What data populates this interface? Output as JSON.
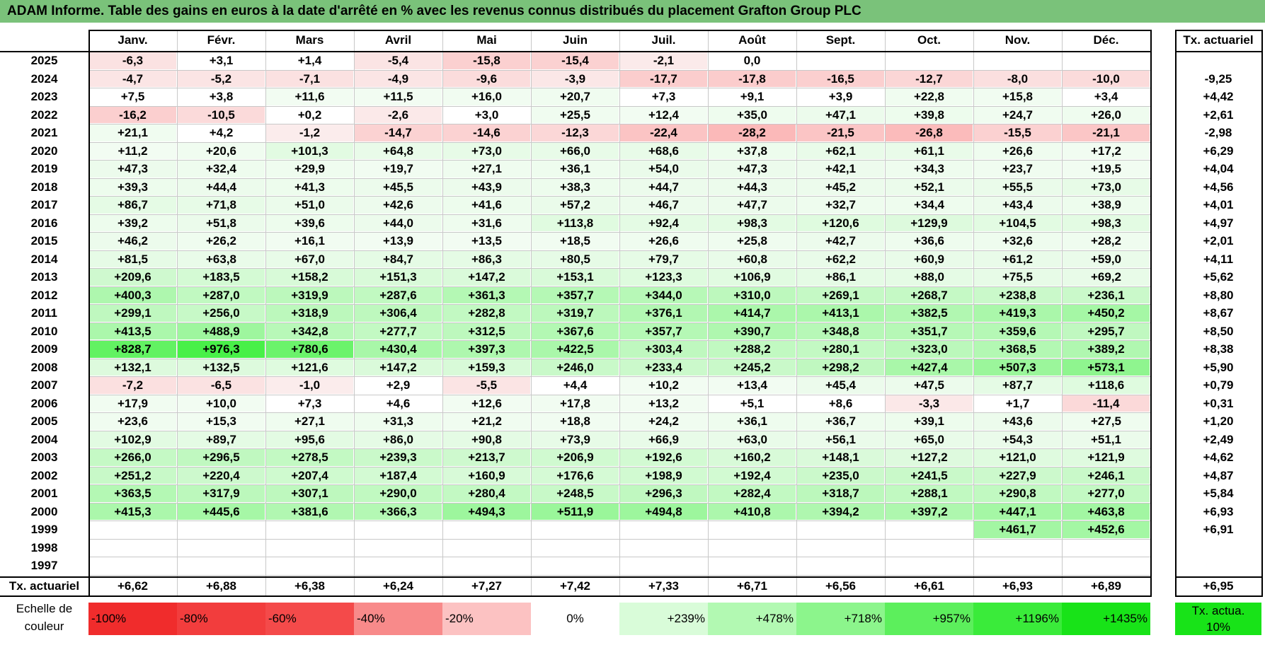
{
  "title": "ADAM Informe. Table des gains en euros à la date d'arrêté en % avec les revenus connus distribués du placement Grafton Group PLC",
  "chart_data": {
    "type": "table",
    "columns": [
      "Janv.",
      "Févr.",
      "Mars",
      "Avril",
      "Mai",
      "Juin",
      "Juil.",
      "Août",
      "Sept.",
      "Oct.",
      "Nov.",
      "Déc."
    ],
    "rate_header": "Tx. actuariel",
    "rows": [
      {
        "year": "2025",
        "values": [
          "-6,3",
          "+3,1",
          "+1,4",
          "-5,4",
          "-15,8",
          "-15,4",
          "-2,1",
          "0,0",
          "",
          "",
          "",
          ""
        ],
        "rate": ""
      },
      {
        "year": "2024",
        "values": [
          "-4,7",
          "-5,2",
          "-7,1",
          "-4,9",
          "-9,6",
          "-3,9",
          "-17,7",
          "-17,8",
          "-16,5",
          "-12,7",
          "-8,0",
          "-10,0"
        ],
        "rate": "-9,25"
      },
      {
        "year": "2023",
        "values": [
          "+7,5",
          "+3,8",
          "+11,6",
          "+11,5",
          "+16,0",
          "+20,7",
          "+7,3",
          "+9,1",
          "+3,9",
          "+22,8",
          "+15,8",
          "+3,4"
        ],
        "rate": "+4,42"
      },
      {
        "year": "2022",
        "values": [
          "-16,2",
          "-10,5",
          "+0,2",
          "-2,6",
          "+3,0",
          "+25,5",
          "+12,4",
          "+35,0",
          "+47,1",
          "+39,8",
          "+24,7",
          "+26,0"
        ],
        "rate": "+2,61"
      },
      {
        "year": "2021",
        "values": [
          "+21,1",
          "+4,2",
          "-1,2",
          "-14,7",
          "-14,6",
          "-12,3",
          "-22,4",
          "-28,2",
          "-21,5",
          "-26,8",
          "-15,5",
          "-21,1"
        ],
        "rate": "-2,98"
      },
      {
        "year": "2020",
        "values": [
          "+11,2",
          "+20,6",
          "+101,3",
          "+64,8",
          "+73,0",
          "+66,0",
          "+68,6",
          "+37,8",
          "+62,1",
          "+61,1",
          "+26,6",
          "+17,2"
        ],
        "rate": "+6,29"
      },
      {
        "year": "2019",
        "values": [
          "+47,3",
          "+32,4",
          "+29,9",
          "+19,7",
          "+27,1",
          "+36,1",
          "+54,0",
          "+47,3",
          "+42,1",
          "+34,3",
          "+23,7",
          "+19,5"
        ],
        "rate": "+4,04"
      },
      {
        "year": "2018",
        "values": [
          "+39,3",
          "+44,4",
          "+41,3",
          "+45,5",
          "+43,9",
          "+38,3",
          "+44,7",
          "+44,3",
          "+45,2",
          "+52,1",
          "+55,5",
          "+73,0"
        ],
        "rate": "+4,56"
      },
      {
        "year": "2017",
        "values": [
          "+86,7",
          "+71,8",
          "+51,0",
          "+42,6",
          "+41,6",
          "+57,2",
          "+46,7",
          "+47,7",
          "+32,7",
          "+34,4",
          "+43,4",
          "+38,9"
        ],
        "rate": "+4,01"
      },
      {
        "year": "2016",
        "values": [
          "+39,2",
          "+51,8",
          "+39,6",
          "+44,0",
          "+31,6",
          "+113,8",
          "+92,4",
          "+98,3",
          "+120,6",
          "+129,9",
          "+104,5",
          "+98,3"
        ],
        "rate": "+4,97"
      },
      {
        "year": "2015",
        "values": [
          "+46,2",
          "+26,2",
          "+16,1",
          "+13,9",
          "+13,5",
          "+18,5",
          "+26,6",
          "+25,8",
          "+42,7",
          "+36,6",
          "+32,6",
          "+28,2"
        ],
        "rate": "+2,01"
      },
      {
        "year": "2014",
        "values": [
          "+81,5",
          "+63,8",
          "+67,0",
          "+84,7",
          "+86,3",
          "+80,5",
          "+79,7",
          "+60,8",
          "+62,2",
          "+60,9",
          "+61,2",
          "+59,0"
        ],
        "rate": "+4,11"
      },
      {
        "year": "2013",
        "values": [
          "+209,6",
          "+183,5",
          "+158,2",
          "+151,3",
          "+147,2",
          "+153,1",
          "+123,3",
          "+106,9",
          "+86,1",
          "+88,0",
          "+75,5",
          "+69,2"
        ],
        "rate": "+5,62"
      },
      {
        "year": "2012",
        "values": [
          "+400,3",
          "+287,0",
          "+319,9",
          "+287,6",
          "+361,3",
          "+357,7",
          "+344,0",
          "+310,0",
          "+269,1",
          "+268,7",
          "+238,8",
          "+236,1"
        ],
        "rate": "+8,80"
      },
      {
        "year": "2011",
        "values": [
          "+299,1",
          "+256,0",
          "+318,9",
          "+306,4",
          "+282,8",
          "+319,7",
          "+376,1",
          "+414,7",
          "+413,1",
          "+382,5",
          "+419,3",
          "+450,2"
        ],
        "rate": "+8,67"
      },
      {
        "year": "2010",
        "values": [
          "+413,5",
          "+488,9",
          "+342,8",
          "+277,7",
          "+312,5",
          "+367,6",
          "+357,7",
          "+390,7",
          "+348,8",
          "+351,7",
          "+359,6",
          "+295,7"
        ],
        "rate": "+8,50"
      },
      {
        "year": "2009",
        "values": [
          "+828,7",
          "+976,3",
          "+780,6",
          "+430,4",
          "+397,3",
          "+422,5",
          "+303,4",
          "+288,2",
          "+280,1",
          "+323,0",
          "+368,5",
          "+389,2"
        ],
        "rate": "+8,38"
      },
      {
        "year": "2008",
        "values": [
          "+132,1",
          "+132,5",
          "+121,6",
          "+147,2",
          "+159,3",
          "+246,0",
          "+233,4",
          "+245,2",
          "+298,2",
          "+427,4",
          "+507,3",
          "+573,1"
        ],
        "rate": "+5,90"
      },
      {
        "year": "2007",
        "values": [
          "-7,2",
          "-6,5",
          "-1,0",
          "+2,9",
          "-5,5",
          "+4,4",
          "+10,2",
          "+13,4",
          "+45,4",
          "+47,5",
          "+87,7",
          "+118,6"
        ],
        "rate": "+0,79"
      },
      {
        "year": "2006",
        "values": [
          "+17,9",
          "+10,0",
          "+7,3",
          "+4,6",
          "+12,6",
          "+17,8",
          "+13,2",
          "+5,1",
          "+8,6",
          "-3,3",
          "+1,7",
          "-11,4"
        ],
        "rate": "+0,31"
      },
      {
        "year": "2005",
        "values": [
          "+23,6",
          "+15,3",
          "+27,1",
          "+31,3",
          "+21,2",
          "+18,8",
          "+24,2",
          "+36,1",
          "+36,7",
          "+39,1",
          "+43,6",
          "+27,5"
        ],
        "rate": "+1,20"
      },
      {
        "year": "2004",
        "values": [
          "+102,9",
          "+89,7",
          "+95,6",
          "+86,0",
          "+90,8",
          "+73,9",
          "+66,9",
          "+63,0",
          "+56,1",
          "+65,0",
          "+54,3",
          "+51,1"
        ],
        "rate": "+2,49"
      },
      {
        "year": "2003",
        "values": [
          "+266,0",
          "+296,5",
          "+278,5",
          "+239,3",
          "+213,7",
          "+206,9",
          "+192,6",
          "+160,2",
          "+148,1",
          "+127,2",
          "+121,0",
          "+121,9"
        ],
        "rate": "+4,62"
      },
      {
        "year": "2002",
        "values": [
          "+251,2",
          "+220,4",
          "+207,4",
          "+187,4",
          "+160,9",
          "+176,6",
          "+198,9",
          "+192,4",
          "+235,0",
          "+241,5",
          "+227,9",
          "+246,1"
        ],
        "rate": "+4,87"
      },
      {
        "year": "2001",
        "values": [
          "+363,5",
          "+317,9",
          "+307,1",
          "+290,0",
          "+280,4",
          "+248,5",
          "+296,3",
          "+282,4",
          "+318,7",
          "+288,1",
          "+290,8",
          "+277,0"
        ],
        "rate": "+5,84"
      },
      {
        "year": "2000",
        "values": [
          "+415,3",
          "+445,6",
          "+381,6",
          "+366,3",
          "+494,3",
          "+511,9",
          "+494,8",
          "+410,8",
          "+394,2",
          "+397,2",
          "+447,1",
          "+463,8"
        ],
        "rate": "+6,93"
      },
      {
        "year": "1999",
        "values": [
          "",
          "",
          "",
          "",
          "",
          "",
          "",
          "",
          "",
          "",
          "+461,7",
          "+452,6"
        ],
        "rate": "+6,91"
      },
      {
        "year": "1998",
        "values": [
          "",
          "",
          "",
          "",
          "",
          "",
          "",
          "",
          "",
          "",
          "",
          ""
        ],
        "rate": ""
      },
      {
        "year": "1997",
        "values": [
          "",
          "",
          "",
          "",
          "",
          "",
          "",
          "",
          "",
          "",
          "",
          ""
        ],
        "rate": ""
      }
    ],
    "footer": {
      "label": "Tx. actuariel",
      "values": [
        "+6,62",
        "+6,88",
        "+6,38",
        "+6,24",
        "+7,27",
        "+7,42",
        "+7,33",
        "+6,71",
        "+6,56",
        "+6,61",
        "+6,93",
        "+6,89"
      ],
      "rate": "+6,95"
    },
    "legend": {
      "label": "Echelle de couleur",
      "items": [
        {
          "text": "-100%",
          "color": "#f02c2c"
        },
        {
          "text": "-80%",
          "color": "#f23d3d"
        },
        {
          "text": "-60%",
          "color": "#f44a4a"
        },
        {
          "text": "-40%",
          "color": "#f88a8a"
        },
        {
          "text": "-20%",
          "color": "#fcc2c2"
        },
        {
          "text": "0%",
          "color": "#ffffff"
        },
        {
          "text": "+239%",
          "color": "#d9fcd9"
        },
        {
          "text": "+478%",
          "color": "#b2f9b2"
        },
        {
          "text": "+718%",
          "color": "#8cf58c"
        },
        {
          "text": "+957%",
          "color": "#5cef5c"
        },
        {
          "text": "+1196%",
          "color": "#3aeb3a"
        },
        {
          "text": "+1435%",
          "color": "#18e318"
        }
      ],
      "rate_legend": {
        "text": "Tx. actua. 10%",
        "color": "#18e318"
      }
    }
  }
}
